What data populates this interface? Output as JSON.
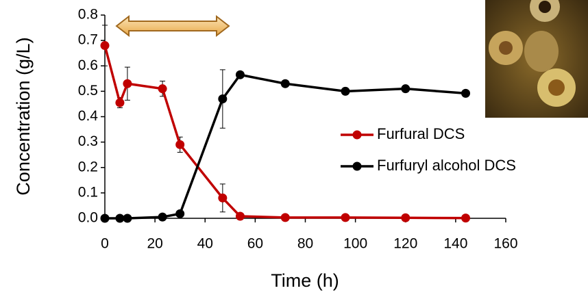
{
  "chart_data": {
    "type": "line",
    "x_label": "Time (h)",
    "y_label": "Concentration (g/L)",
    "xlim": [
      0,
      160
    ],
    "ylim": [
      0,
      0.8
    ],
    "xticks": [
      0,
      20,
      40,
      60,
      80,
      100,
      120,
      140,
      160
    ],
    "yticks": [
      {
        "value": 0,
        "label": "0.0"
      },
      0.1,
      0.2,
      0.3,
      0.4,
      0.5,
      0.6,
      0.7,
      0.8
    ],
    "series": [
      {
        "name": "Furfural DCS",
        "color": "#c00000",
        "x": [
          0,
          6,
          9,
          23,
          30,
          47,
          54,
          72,
          96,
          120,
          144
        ],
        "values": [
          0.68,
          0.455,
          0.53,
          0.51,
          0.29,
          0.08,
          0.008,
          0.003,
          0.003,
          0.002,
          0.001
        ],
        "errors": [
          0.08,
          0.02,
          0.065,
          0.03,
          0.03,
          0.055,
          0,
          0,
          0,
          0,
          0
        ]
      },
      {
        "name": "Furfuryl alcohol DCS",
        "color": "#000000",
        "x": [
          0,
          6,
          9,
          23,
          30,
          47,
          54,
          72,
          96,
          120,
          144
        ],
        "values": [
          0,
          0,
          0,
          0.005,
          0.018,
          0.47,
          0.565,
          0.53,
          0.5,
          0.51,
          0.492
        ],
        "errors": [
          0,
          0,
          0,
          0,
          0,
          0.115,
          0,
          0,
          0,
          0,
          0
        ]
      }
    ]
  }
}
